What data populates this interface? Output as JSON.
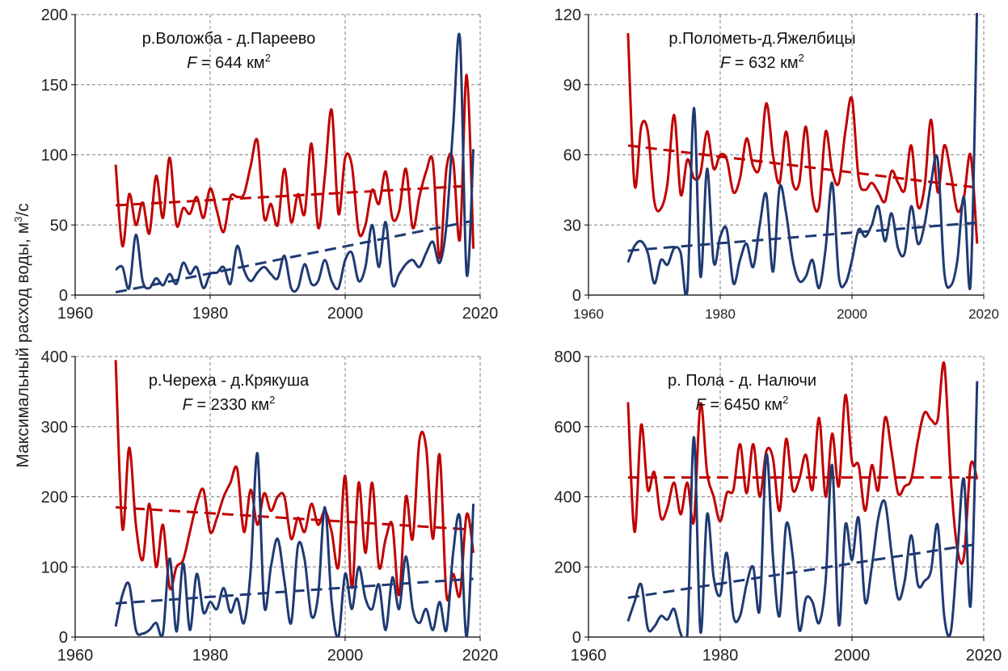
{
  "ylabel_prefix": "Максимальный расход воды, м",
  "ylabel_sup": "3",
  "ylabel_suffix": "/с",
  "colors": {
    "observed_red": "#C00000",
    "observed_blue": "#1F3A73",
    "grid": "#7F7F7F",
    "axis": "#000000"
  },
  "chart_data": [
    {
      "type": "line",
      "title": "р.Воложба - д.Пареево",
      "area_prefix": "F",
      "area_value": " = 644 км",
      "area_sup": "2",
      "xlim": [
        1960,
        2020
      ],
      "ylim": [
        0,
        200
      ],
      "xticks": [
        1960,
        1980,
        2000,
        2020
      ],
      "yticks": [
        0,
        50,
        100,
        150,
        200
      ],
      "grid": true,
      "x": [
        1966,
        1967,
        1968,
        1969,
        1970,
        1971,
        1972,
        1973,
        1974,
        1975,
        1976,
        1977,
        1978,
        1979,
        1980,
        1981,
        1982,
        1983,
        1984,
        1985,
        1986,
        1987,
        1988,
        1989,
        1990,
        1991,
        1992,
        1993,
        1994,
        1995,
        1996,
        1997,
        1998,
        1999,
        2000,
        2001,
        2002,
        2003,
        2004,
        2005,
        2006,
        2007,
        2008,
        2009,
        2010,
        2011,
        2012,
        2013,
        2014,
        2015,
        2016,
        2017,
        2018,
        2019
      ],
      "series": [
        {
          "color": "#C00000",
          "values": [
            93,
            35,
            72,
            50,
            66,
            44,
            85,
            55,
            98,
            50,
            62,
            58,
            70,
            55,
            76,
            60,
            45,
            70,
            70,
            72,
            92,
            110,
            55,
            65,
            50,
            90,
            52,
            72,
            58,
            108,
            48,
            85,
            132,
            58,
            98,
            92,
            45,
            50,
            75,
            65,
            88,
            55,
            60,
            90,
            48,
            70,
            88,
            95,
            26,
            90,
            96,
            40,
            157,
            33
          ],
          "trend": [
            64,
            78
          ]
        },
        {
          "color": "#1F3A73",
          "values": [
            18,
            20,
            5,
            43,
            10,
            5,
            12,
            7,
            15,
            8,
            23,
            15,
            20,
            5,
            15,
            16,
            20,
            8,
            35,
            18,
            10,
            16,
            20,
            15,
            12,
            28,
            5,
            5,
            22,
            8,
            10,
            25,
            10,
            5,
            25,
            30,
            10,
            20,
            50,
            20,
            52,
            8,
            15,
            22,
            25,
            20,
            30,
            38,
            23,
            50,
            120,
            183,
            15,
            104
          ],
          "trend": [
            2,
            53
          ]
        }
      ]
    },
    {
      "type": "line",
      "title": "р.Пoлометь-д.Яжелбицы",
      "area_prefix": "F",
      "area_value": " = 632 км",
      "area_sup": "2",
      "xlim": [
        1960,
        2020
      ],
      "ylim": [
        0,
        120
      ],
      "xticks": [
        1960,
        1980,
        2000,
        2020
      ],
      "yticks": [
        0,
        30,
        60,
        90,
        120
      ],
      "grid": true,
      "x": [
        1966,
        1967,
        1968,
        1969,
        1970,
        1971,
        1972,
        1973,
        1974,
        1975,
        1976,
        1977,
        1978,
        1979,
        1980,
        1981,
        1982,
        1983,
        1984,
        1985,
        1986,
        1987,
        1988,
        1989,
        1990,
        1991,
        1992,
        1993,
        1994,
        1995,
        1996,
        1997,
        1998,
        1999,
        2000,
        2001,
        2002,
        2003,
        2004,
        2005,
        2006,
        2007,
        2008,
        2009,
        2010,
        2011,
        2012,
        2013,
        2014,
        2015,
        2016,
        2017,
        2018,
        2019
      ],
      "series": [
        {
          "color": "#C00000",
          "values": [
            112,
            47,
            72,
            70,
            40,
            37,
            48,
            77,
            43,
            58,
            50,
            52,
            70,
            54,
            60,
            58,
            44,
            50,
            67,
            55,
            55,
            82,
            60,
            48,
            70,
            48,
            48,
            72,
            42,
            38,
            70,
            53,
            48,
            70,
            84,
            50,
            45,
            48,
            44,
            40,
            53,
            48,
            45,
            64,
            38,
            46,
            75,
            44,
            64,
            52,
            36,
            42,
            60,
            22
          ],
          "trend": [
            64,
            46
          ]
        },
        {
          "color": "#1F3A73",
          "values": [
            14,
            21,
            23,
            18,
            5,
            15,
            13,
            20,
            18,
            2,
            80,
            8,
            54,
            14,
            25,
            28,
            5,
            15,
            22,
            12,
            30,
            43,
            10,
            46,
            35,
            15,
            6,
            8,
            15,
            3,
            20,
            48,
            8,
            5,
            15,
            28,
            25,
            30,
            38,
            23,
            35,
            20,
            18,
            38,
            22,
            30,
            48,
            58,
            10,
            4,
            15,
            42,
            5,
            125
          ],
          "trend": [
            19,
            31
          ]
        }
      ]
    },
    {
      "type": "line",
      "title": "р.Череха - д.Крякуша",
      "area_prefix": "F",
      "area_value": " = 2330 км",
      "area_sup": "2",
      "xlim": [
        1960,
        2020
      ],
      "ylim": [
        0,
        400
      ],
      "xticks": [
        1960,
        1980,
        2000,
        2020
      ],
      "yticks": [
        0,
        100,
        200,
        300,
        400
      ],
      "grid": true,
      "x": [
        1966,
        1967,
        1968,
        1969,
        1970,
        1971,
        1972,
        1973,
        1974,
        1975,
        1976,
        1977,
        1978,
        1979,
        1980,
        1981,
        1982,
        1983,
        1984,
        1985,
        1986,
        1987,
        1988,
        1989,
        1990,
        1991,
        1992,
        1993,
        1994,
        1995,
        1996,
        1997,
        1998,
        1999,
        2000,
        2001,
        2002,
        2003,
        2004,
        2005,
        2006,
        2007,
        2008,
        2009,
        2010,
        2011,
        2012,
        2013,
        2014,
        2015,
        2016,
        2017,
        2018,
        2019
      ],
      "series": [
        {
          "color": "#C00000",
          "values": [
            395,
            155,
            270,
            160,
            110,
            190,
            100,
            160,
            70,
            100,
            110,
            150,
            190,
            210,
            150,
            170,
            200,
            220,
            240,
            150,
            210,
            160,
            205,
            180,
            200,
            200,
            140,
            170,
            150,
            190,
            160,
            180,
            150,
            100,
            230,
            70,
            220,
            120,
            220,
            100,
            140,
            160,
            60,
            200,
            140,
            280,
            270,
            140,
            260,
            60,
            90,
            60,
            175,
            120
          ],
          "trend": [
            185,
            153
          ]
        },
        {
          "color": "#1F3A73",
          "values": [
            15,
            60,
            75,
            10,
            5,
            10,
            20,
            5,
            112,
            8,
            105,
            10,
            90,
            35,
            50,
            40,
            70,
            35,
            55,
            20,
            95,
            262,
            45,
            100,
            140,
            80,
            20,
            130,
            110,
            30,
            60,
            185,
            50,
            0,
            90,
            40,
            100,
            55,
            40,
            75,
            10,
            85,
            40,
            115,
            40,
            20,
            40,
            10,
            50,
            10,
            120,
            170,
            0,
            190
          ],
          "trend": [
            48,
            83
          ]
        }
      ]
    },
    {
      "type": "line",
      "title": "р. Пола - д. Налючи",
      "area_prefix": "F",
      "area_value": " = 6450 км",
      "area_sup": "2",
      "xlim": [
        1960,
        2020
      ],
      "ylim": [
        0,
        800
      ],
      "xticks": [
        1960,
        1980,
        2000,
        2020
      ],
      "yticks": [
        0,
        200,
        400,
        600,
        800
      ],
      "grid": true,
      "x": [
        1966,
        1967,
        1968,
        1969,
        1970,
        1971,
        1972,
        1973,
        1974,
        1975,
        1976,
        1977,
        1978,
        1979,
        1980,
        1981,
        1982,
        1983,
        1984,
        1985,
        1986,
        1987,
        1988,
        1989,
        1990,
        1991,
        1992,
        1993,
        1994,
        1995,
        1996,
        1997,
        1998,
        1999,
        2000,
        2001,
        2002,
        2003,
        2004,
        2005,
        2006,
        2007,
        2008,
        2009,
        2010,
        2011,
        2012,
        2013,
        2014,
        2015,
        2016,
        2017,
        2018,
        2019
      ],
      "series": [
        {
          "color": "#C00000",
          "values": [
            670,
            300,
            605,
            420,
            470,
            340,
            370,
            440,
            350,
            440,
            330,
            665,
            470,
            400,
            330,
            410,
            420,
            550,
            410,
            550,
            400,
            530,
            510,
            360,
            565,
            420,
            450,
            520,
            420,
            625,
            400,
            580,
            430,
            690,
            500,
            490,
            360,
            490,
            420,
            625,
            530,
            410,
            430,
            450,
            560,
            640,
            620,
            620,
            780,
            450,
            250,
            230,
            490,
            450
          ],
          "trend": [
            455,
            455
          ]
        },
        {
          "color": "#1F3A73",
          "values": [
            45,
            100,
            150,
            25,
            30,
            60,
            50,
            80,
            10,
            10,
            570,
            15,
            350,
            170,
            120,
            240,
            60,
            60,
            150,
            200,
            80,
            520,
            230,
            60,
            320,
            230,
            20,
            110,
            100,
            40,
            160,
            490,
            35,
            320,
            220,
            340,
            100,
            200,
            340,
            385,
            240,
            110,
            160,
            290,
            150,
            160,
            190,
            320,
            60,
            15,
            240,
            450,
            90,
            730
          ],
          "trend": [
            112,
            265
          ]
        }
      ]
    }
  ]
}
